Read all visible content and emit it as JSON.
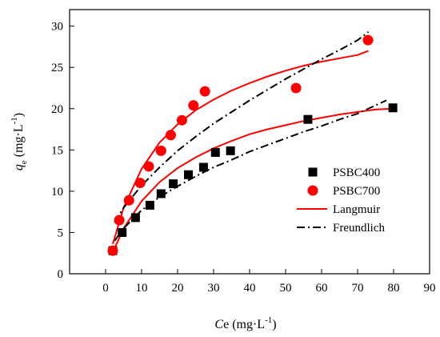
{
  "chart_data": {
    "type": "scatter",
    "xlim": [
      -10,
      90
    ],
    "ylim": [
      0,
      32
    ],
    "x_ticks": [
      0,
      10,
      20,
      30,
      40,
      50,
      60,
      70,
      80,
      90
    ],
    "y_ticks": [
      0,
      5,
      10,
      15,
      20,
      25,
      30
    ],
    "xlabel": {
      "italic": "C",
      "rest": "e (mg·L",
      "sup": "-1",
      "tail": ")"
    },
    "ylabel": {
      "italic": "q",
      "sub": "e",
      "rest": " (mg·L",
      "sup": "-1",
      "tail": ")"
    },
    "series": [
      {
        "name": "PSBC400",
        "kind": "points",
        "marker": "square",
        "color": "#000000",
        "x": [
          2.0,
          4.6,
          8.3,
          12.3,
          15.4,
          18.8,
          23.0,
          27.2,
          30.5,
          34.7,
          56.2,
          79.8
        ],
        "y": [
          2.8,
          5.0,
          6.8,
          8.3,
          9.7,
          10.9,
          12.0,
          12.9,
          14.7,
          14.9,
          18.7,
          20.1
        ]
      },
      {
        "name": "PSBC700",
        "kind": "points",
        "marker": "circle",
        "color": "#ff0000",
        "x": [
          2.0,
          3.8,
          6.5,
          9.6,
          12.0,
          15.4,
          18.1,
          21.2,
          24.4,
          27.6,
          52.9,
          72.9
        ],
        "y": [
          2.8,
          6.5,
          8.9,
          11.0,
          13.0,
          14.9,
          16.8,
          18.6,
          20.4,
          22.1,
          22.5,
          28.3
        ]
      },
      {
        "name": "Langmuir",
        "kind": "line",
        "dash": "solid",
        "color": "#ff0000",
        "curves": [
          {
            "x": [
              2,
              5,
              10,
              15,
              20,
              25,
              30,
              35,
              40,
              45,
              50,
              55,
              60,
              65,
              70,
              75,
              80
            ],
            "y": [
              2.6,
              5.5,
              8.8,
              11.1,
              12.8,
              14.1,
              15.2,
              16.1,
              16.9,
              17.5,
              18.0,
              18.5,
              18.9,
              19.3,
              19.6,
              19.9,
              20.0
            ]
          },
          {
            "x": [
              2,
              5,
              10,
              15,
              20,
              25,
              30,
              35,
              40,
              45,
              50,
              55,
              60,
              65,
              70,
              73
            ],
            "y": [
              3.6,
              8.0,
              12.7,
              15.9,
              18.1,
              19.8,
              21.1,
              22.2,
              23.1,
              23.9,
              24.6,
              25.2,
              25.7,
              26.1,
              26.5,
              27.0
            ]
          }
        ]
      },
      {
        "name": "Freundlich",
        "kind": "line",
        "dash": "dash-dot",
        "color": "#000000",
        "curves": [
          {
            "x": [
              2.5,
              5,
              10,
              15,
              20,
              25,
              30,
              35,
              40,
              45,
              50,
              55,
              60,
              65,
              70,
              75,
              78
            ],
            "y": [
              4.0,
              5.5,
              7.7,
              9.3,
              10.6,
              11.8,
              12.9,
              13.8,
              14.8,
              15.6,
              16.4,
              17.2,
              17.9,
              18.7,
              19.4,
              20.4,
              21.0
            ]
          },
          {
            "x": [
              2.5,
              5,
              10,
              15,
              20,
              25,
              30,
              35,
              40,
              45,
              50,
              55,
              60,
              65,
              70,
              73
            ],
            "y": [
              6.2,
              8.0,
              10.7,
              12.9,
              14.9,
              16.6,
              18.2,
              19.6,
              21.0,
              22.3,
              23.6,
              24.8,
              26.0,
              27.1,
              28.3,
              29.3
            ]
          }
        ]
      }
    ],
    "legend": {
      "position": "right-middle"
    }
  }
}
